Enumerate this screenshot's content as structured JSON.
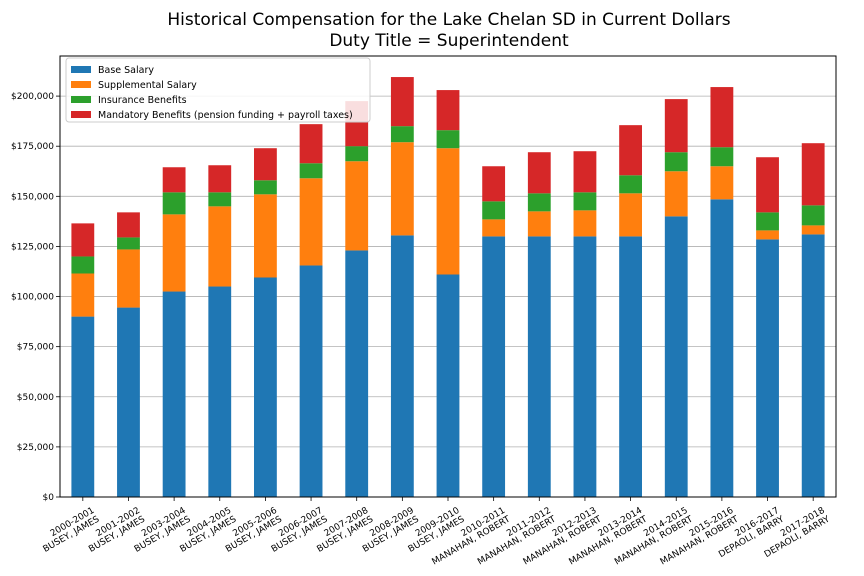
{
  "chart_data": {
    "type": "bar",
    "stacked": true,
    "title": "Historical Compensation for the Lake Chelan SD in Current Dollars",
    "subtitle": "Duty Title = Superintendent",
    "xlabel": "",
    "ylabel": "",
    "ylim": [
      0,
      220000
    ],
    "yticks": [
      "$0",
      "$25,000",
      "$50,000",
      "$75,000",
      "$100,000",
      "$125,000",
      "$150,000",
      "$175,000",
      "$200,000"
    ],
    "ytick_values": [
      0,
      25000,
      50000,
      75000,
      100000,
      125000,
      150000,
      175000,
      200000
    ],
    "grid": "horizontal",
    "legend_position": "top-left",
    "categories": [
      [
        "2000-2001",
        "BUSEY, JAMES"
      ],
      [
        "2001-2002",
        "BUSEY, JAMES"
      ],
      [
        "2003-2004",
        "BUSEY, JAMES"
      ],
      [
        "2004-2005",
        "BUSEY, JAMES"
      ],
      [
        "2005-2006",
        "BUSEY, JAMES"
      ],
      [
        "2006-2007",
        "BUSEY, JAMES"
      ],
      [
        "2007-2008",
        "BUSEY, JAMES"
      ],
      [
        "2008-2009",
        "BUSEY, JAMES"
      ],
      [
        "2009-2010",
        "BUSEY, JAMES"
      ],
      [
        "2010-2011",
        "MANAHAN, ROBERT"
      ],
      [
        "2011-2012",
        "MANAHAN, ROBERT"
      ],
      [
        "2012-2013",
        "MANAHAN, ROBERT"
      ],
      [
        "2013-2014",
        "MANAHAN, ROBERT"
      ],
      [
        "2014-2015",
        "MANAHAN, ROBERT"
      ],
      [
        "2015-2016",
        "MANAHAN, ROBERT"
      ],
      [
        "2016-2017",
        "DEPAOLI, BARRY"
      ],
      [
        "2017-2018",
        "DEPAOLI, BARRY"
      ]
    ],
    "series": [
      {
        "name": "Base Salary",
        "color": "#1f77b4",
        "values": [
          90000,
          94500,
          102500,
          105000,
          109500,
          115500,
          123000,
          130500,
          111000,
          130000,
          130000,
          130000,
          130000,
          140000,
          148500,
          128500,
          131000
        ]
      },
      {
        "name": "Supplemental Salary",
        "color": "#ff7f0e",
        "values": [
          21500,
          29000,
          38500,
          40000,
          41500,
          43500,
          44500,
          46500,
          63000,
          8500,
          12500,
          13000,
          21500,
          22500,
          16500,
          4500,
          4500
        ]
      },
      {
        "name": "Insurance Benefits",
        "color": "#2ca02c",
        "values": [
          8500,
          6000,
          11000,
          7000,
          7000,
          7500,
          7500,
          8000,
          9000,
          9000,
          9000,
          9000,
          9000,
          9500,
          9500,
          9000,
          10000
        ]
      },
      {
        "name": "Mandatory Benefits (pension funding + payroll taxes)",
        "color": "#d62728",
        "values": [
          16500,
          12500,
          12500,
          13500,
          16000,
          19500,
          22500,
          24500,
          20000,
          17500,
          20500,
          20500,
          25000,
          26500,
          30000,
          27500,
          31000
        ]
      }
    ]
  }
}
